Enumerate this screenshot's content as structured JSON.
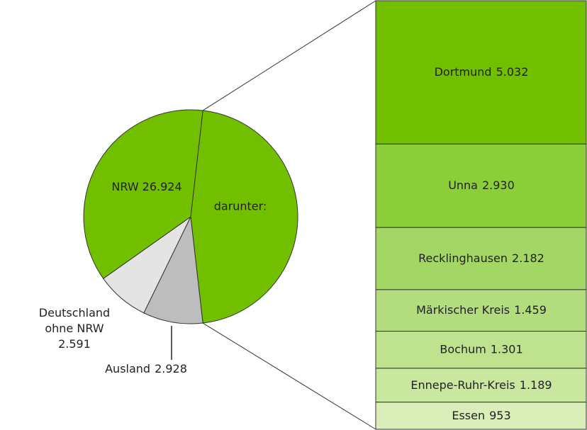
{
  "chart_data": {
    "type": "pie-of-bar",
    "pie": {
      "categories": [
        "NRW",
        "Deutschland ohne NRW",
        "Ausland"
      ],
      "values": [
        26924,
        2591,
        2928
      ],
      "value_labels": [
        "26.924",
        "2.591",
        "2.928"
      ],
      "colors": [
        "#72bf00",
        "#e3e4e3",
        "#bdbdbd"
      ]
    },
    "subset_label": "darunter:",
    "bar": {
      "categories": [
        "Dortmund",
        "Unna",
        "Recklinghausen",
        "Märkischer Kreis",
        "Bochum",
        "Ennepe-Ruhr-Kreis",
        "Essen"
      ],
      "values": [
        5032,
        2930,
        2182,
        1459,
        1301,
        1189,
        953
      ],
      "value_labels": [
        "5.032",
        "2.930",
        "2.182",
        "1.459",
        "1.301",
        "1.189",
        "953"
      ],
      "colors": [
        "#72bf00",
        "#8cce3a",
        "#a3d665",
        "#b2dc7d",
        "#bfe28f",
        "#cae7a0",
        "#d9eeb9"
      ]
    }
  }
}
